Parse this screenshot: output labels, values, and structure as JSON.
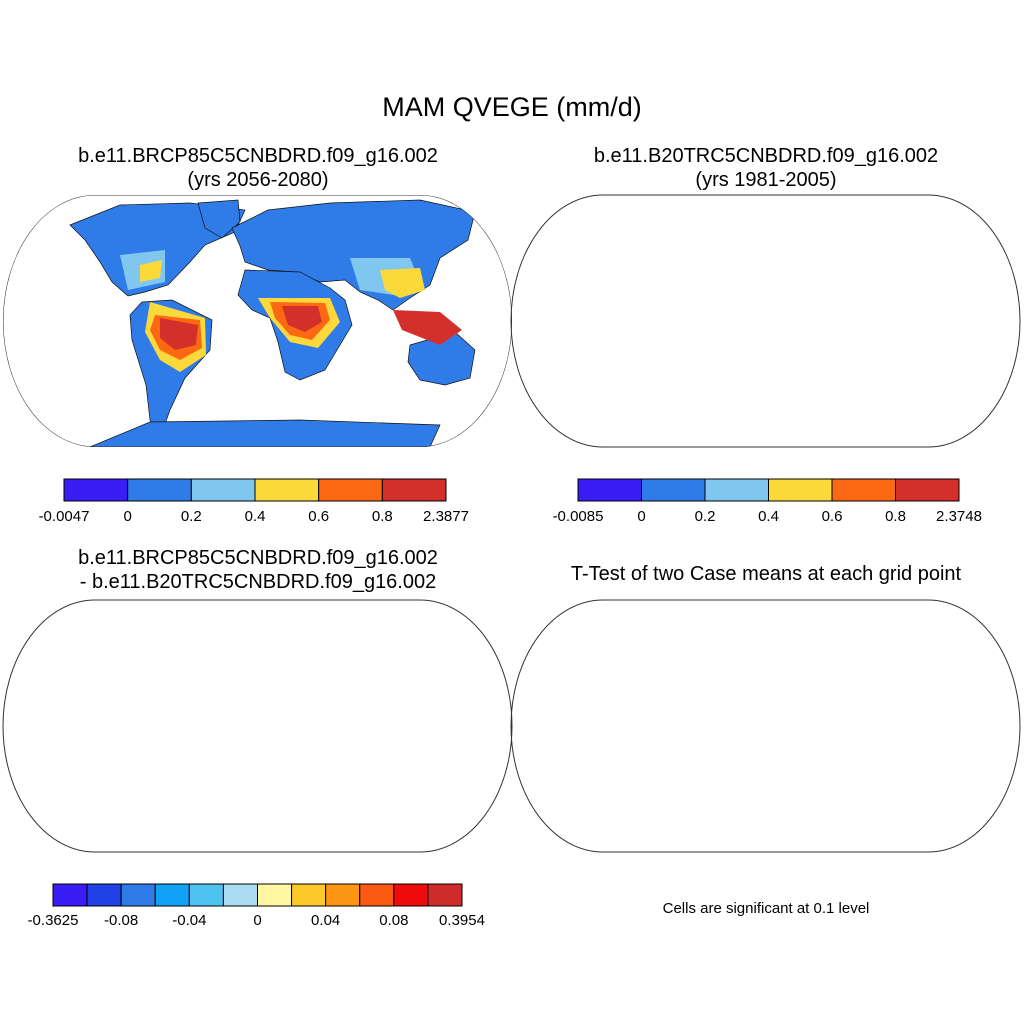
{
  "title": "MAM QVEGE (mm/d)",
  "panels": [
    {
      "title_line1": "b.e11.BRCP85C5CNBDRD.f09_g16.002",
      "title_line2": "(yrs 2056-2080)",
      "colorbar": {
        "colors": [
          "#3a1cf5",
          "#2f7be8",
          "#7fc7ef",
          "#fbd93a",
          "#fb6a12",
          "#d3302c"
        ],
        "labels": [
          "-0.0047",
          "0",
          "0.2",
          "0.4",
          "0.6",
          "0.8",
          "2.3877"
        ]
      }
    },
    {
      "title_line1": "b.e11.B20TRC5CNBDRD.f09_g16.002",
      "title_line2": "(yrs 1981-2005)",
      "colorbar": {
        "colors": [
          "#3a1cf5",
          "#2f7be8",
          "#7fc7ef",
          "#fbd93a",
          "#fb6a12",
          "#d3302c"
        ],
        "labels": [
          "-0.0085",
          "0",
          "0.2",
          "0.4",
          "0.6",
          "0.8",
          "2.3748"
        ]
      }
    },
    {
      "title_line1": "b.e11.BRCP85C5CNBDRD.f09_g16.002",
      "title_line2": "- b.e11.B20TRC5CNBDRD.f09_g16.002",
      "colorbar": {
        "colors": [
          "#3a1cf5",
          "#2142e6",
          "#2f7be8",
          "#12a2f5",
          "#4ec3f0",
          "#a9dbf2",
          "#fff7a2",
          "#fdc92a",
          "#fd9612",
          "#fb5a12",
          "#f00c0c",
          "#cf2c2c"
        ],
        "labels": [
          "-0.3625",
          "-0.08",
          "-0.04",
          "0",
          "0.04",
          "0.08",
          "0.3954"
        ]
      }
    },
    {
      "title_line1": "T-Test of two Case means at each grid point",
      "note": "Cells are significant at 0.1 level"
    }
  ]
}
